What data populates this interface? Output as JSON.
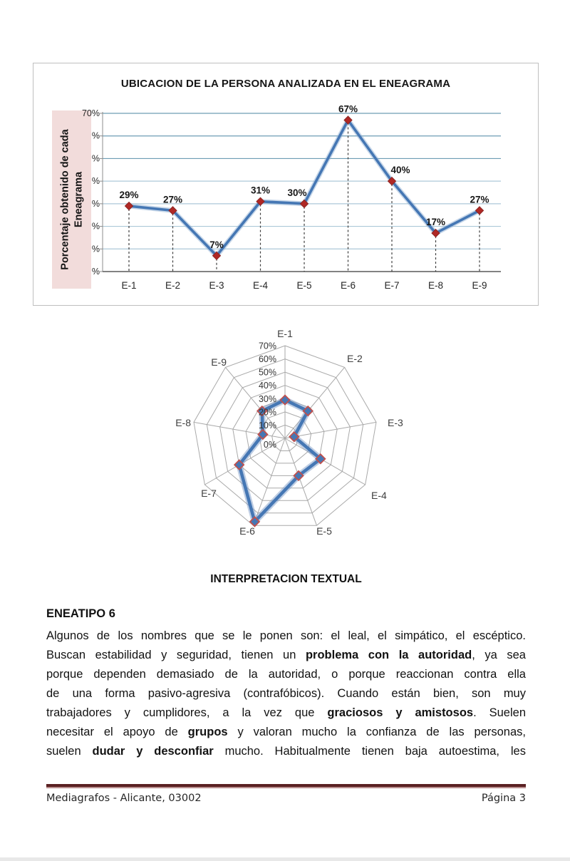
{
  "chart_data": [
    {
      "type": "line",
      "title": "UBICACION DE LA PERSONA ANALIZADA EN EL ENEAGRAMA",
      "ylabel": "Porcentaje obtenido de cada Eneagrama",
      "ylabel_lines": [
        "Porcentaje obtenido de cada",
        "Eneagrama"
      ],
      "categories": [
        "E-1",
        "E-2",
        "E-3",
        "E-4",
        "E-5",
        "E-6",
        "E-7",
        "E-8",
        "E-9"
      ],
      "values": [
        29,
        27,
        7,
        31,
        30,
        67,
        40,
        17,
        27
      ],
      "data_labels": [
        "29%",
        "27%",
        "7%",
        "31%",
        "30%",
        "67%",
        "40%",
        "17%",
        "27%"
      ],
      "ylim": [
        0,
        70
      ],
      "y_tick_step": 10,
      "y_tick_labels_visible": [
        "70%",
        "%",
        "%",
        "%",
        "%",
        "%",
        "%",
        "%"
      ],
      "grid": true,
      "legend": "none",
      "marker": "diamond"
    },
    {
      "type": "radar",
      "categories": [
        "E-1",
        "E-2",
        "E-3",
        "E-4",
        "E-5",
        "E-6",
        "E-7",
        "E-8",
        "E-9"
      ],
      "values": [
        29,
        27,
        7,
        31,
        30,
        67,
        40,
        17,
        27
      ],
      "ring_labels": [
        "70%",
        "60%",
        "50%",
        "40%",
        "30%",
        "20%",
        "10%",
        "0%"
      ],
      "rlim": [
        0,
        70
      ],
      "grid": true,
      "legend": "none",
      "marker": "diamond"
    }
  ],
  "interpretation": {
    "heading": "INTERPRETACION TEXTUAL",
    "subheading": "ENEATIPO 6",
    "lines": [
      [
        {
          "t": "Algunos de los nombres que se le ponen son: el leal, el simpático, el escéptico.",
          "b": false
        }
      ],
      [
        {
          "t": "Buscan estabilidad y seguridad, tienen un ",
          "b": false
        },
        {
          "t": "problema con la autoridad",
          "b": true
        },
        {
          "t": ", ya sea",
          "b": false
        }
      ],
      [
        {
          "t": "porque dependen demasiado de la autoridad, o porque reaccionan contra ella",
          "b": false
        }
      ],
      [
        {
          "t": "de una forma pasivo-agresiva (contrafóbicos). Cuando están bien, son muy",
          "b": false
        }
      ],
      [
        {
          "t": "trabajadores y cumplidores, a la vez que ",
          "b": false
        },
        {
          "t": "graciosos y amistosos",
          "b": true
        },
        {
          "t": ". Suelen",
          "b": false
        }
      ],
      [
        {
          "t": "necesitar el apoyo de ",
          "b": false
        },
        {
          "t": "grupos",
          "b": true
        },
        {
          "t": " y valoran mucho la confianza de las personas,",
          "b": false
        }
      ],
      [
        {
          "t": "suelen ",
          "b": false
        },
        {
          "t": "dudar y desconfiar",
          "b": true
        },
        {
          "t": " mucho. Habitualmente tienen baja autoestima, les",
          "b": false
        }
      ]
    ]
  },
  "footer": {
    "left": "Mediagrafos - Alicante, 03002",
    "right": "Página 3"
  },
  "colors": {
    "line": "#4577b4",
    "line_glow": "#8fb0d4",
    "marker_fill": "#b02825",
    "marker_edge": "#8c2523",
    "radar_line": "#4577b4",
    "radar_glow": "#7d9cc8",
    "radar_marker_fill": "#4577b4",
    "radar_marker_edge": "#c0504d",
    "grid_dark": "#6e9db4",
    "grid_light": "#adc8d8",
    "radar_grid": "#a9a9a9",
    "axis": "#595959",
    "ylabel_bg": "#f2dcdb",
    "chart_border": "#bfbfbf",
    "footer_rule": "#5a2022"
  }
}
